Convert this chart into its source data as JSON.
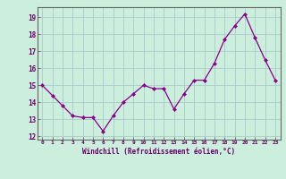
{
  "x": [
    0,
    1,
    2,
    3,
    4,
    5,
    6,
    7,
    8,
    9,
    10,
    11,
    12,
    13,
    14,
    15,
    16,
    17,
    18,
    19,
    20,
    21,
    22,
    23
  ],
  "y": [
    15.0,
    14.4,
    13.8,
    13.2,
    13.1,
    13.1,
    12.3,
    13.2,
    14.0,
    14.5,
    15.0,
    14.8,
    14.8,
    13.6,
    14.5,
    15.3,
    15.3,
    16.3,
    17.7,
    18.5,
    19.2,
    17.8,
    16.5,
    15.3
  ],
  "xlabel": "Windchill (Refroidissement éolien,°C)",
  "ylim": [
    11.8,
    19.6
  ],
  "yticks": [
    12,
    13,
    14,
    15,
    16,
    17,
    18,
    19
  ],
  "xticks": [
    0,
    1,
    2,
    3,
    4,
    5,
    6,
    7,
    8,
    9,
    10,
    11,
    12,
    13,
    14,
    15,
    16,
    17,
    18,
    19,
    20,
    21,
    22,
    23
  ],
  "line_color": "#880088",
  "marker_color": "#880088",
  "bg_color": "#cceedd",
  "grid_color": "#aacccc",
  "axis_label_color": "#660066",
  "tick_color": "#660066",
  "spine_color": "#666666"
}
